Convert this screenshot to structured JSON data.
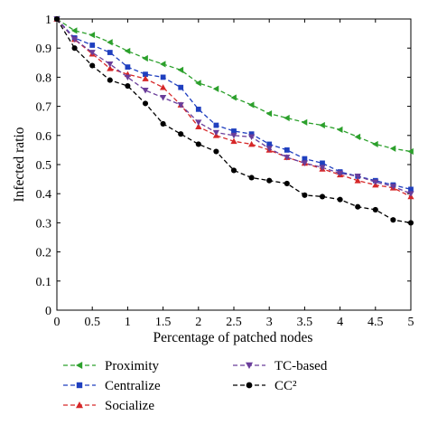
{
  "chart_data": {
    "type": "line",
    "xlabel": "Percentage of patched nodes",
    "ylabel": "Infected ratio",
    "xlim": [
      0,
      5
    ],
    "ylim": [
      0,
      1
    ],
    "xticks": [
      "0",
      "0.5",
      "1",
      "1.5",
      "2",
      "2.5",
      "3",
      "3.5",
      "4",
      "4.5",
      "5"
    ],
    "yticks": [
      "0",
      "0.1",
      "0.2",
      "0.3",
      "0.4",
      "0.5",
      "0.6",
      "0.7",
      "0.8",
      "0.9",
      "1"
    ],
    "grid": false,
    "legend_position": "bottom",
    "x": [
      0,
      0.25,
      0.5,
      0.75,
      1,
      1.25,
      1.5,
      1.75,
      2,
      2.25,
      2.5,
      2.75,
      3,
      3.25,
      3.5,
      3.75,
      4,
      4.25,
      4.5,
      4.75,
      5
    ],
    "series": [
      {
        "name": "Proximity",
        "color": "#2ca02c",
        "marker": "triangle-left",
        "values": [
          1.0,
          0.96,
          0.945,
          0.92,
          0.89,
          0.865,
          0.845,
          0.825,
          0.78,
          0.76,
          0.73,
          0.705,
          0.675,
          0.66,
          0.645,
          0.635,
          0.62,
          0.595,
          0.57,
          0.555,
          0.545
        ]
      },
      {
        "name": "Centralize",
        "color": "#1f3fbf",
        "marker": "square",
        "values": [
          1.0,
          0.935,
          0.91,
          0.885,
          0.835,
          0.81,
          0.8,
          0.765,
          0.69,
          0.635,
          0.615,
          0.605,
          0.57,
          0.55,
          0.52,
          0.505,
          0.475,
          0.46,
          0.445,
          0.43,
          0.415
        ]
      },
      {
        "name": "Socialize",
        "color": "#d62728",
        "marker": "triangle-up",
        "values": [
          1.0,
          0.93,
          0.88,
          0.83,
          0.81,
          0.795,
          0.765,
          0.705,
          0.63,
          0.6,
          0.58,
          0.57,
          0.55,
          0.525,
          0.505,
          0.485,
          0.465,
          0.445,
          0.43,
          0.42,
          0.39
        ]
      },
      {
        "name": "TC-based",
        "color": "#6a3d9a",
        "marker": "triangle-down",
        "values": [
          1.0,
          0.93,
          0.885,
          0.845,
          0.8,
          0.755,
          0.73,
          0.705,
          0.645,
          0.61,
          0.6,
          0.595,
          0.555,
          0.525,
          0.505,
          0.49,
          0.47,
          0.46,
          0.44,
          0.425,
          0.4
        ]
      },
      {
        "name": "CC²",
        "color": "#000000",
        "marker": "circle",
        "values": [
          1.0,
          0.9,
          0.84,
          0.79,
          0.77,
          0.71,
          0.64,
          0.605,
          0.57,
          0.545,
          0.48,
          0.455,
          0.445,
          0.435,
          0.395,
          0.39,
          0.38,
          0.355,
          0.345,
          0.31,
          0.3
        ]
      }
    ]
  }
}
